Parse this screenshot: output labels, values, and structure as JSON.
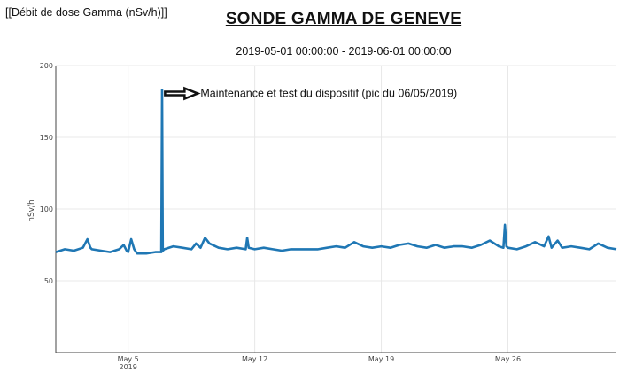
{
  "header": {
    "corner_label": "[[Débit de dose Gamma (nSv/h)]]",
    "title": "SONDE GAMMA DE GENEVE",
    "subtitle": "2019-05-01 00:00:00 - 2019-06-01 00:00:00"
  },
  "chart_data": {
    "type": "line",
    "title": "SONDE GAMMA DE GENEVE",
    "subtitle": "2019-05-01 00:00:00 - 2019-06-01 00:00:00",
    "xlabel": "",
    "ylabel": "nSv/h",
    "xlim": [
      "2019-05-01",
      "2019-06-01"
    ],
    "ylim": [
      0,
      200
    ],
    "yticks": [
      50,
      100,
      150,
      200
    ],
    "xticks": [
      {
        "date": "2019-05-05",
        "label": "May 5",
        "sublabel": "2019"
      },
      {
        "date": "2019-05-12",
        "label": "May 12",
        "sublabel": ""
      },
      {
        "date": "2019-05-19",
        "label": "May 19",
        "sublabel": ""
      },
      {
        "date": "2019-05-26",
        "label": "May 26",
        "sublabel": ""
      }
    ],
    "grid": true,
    "series": [
      {
        "name": "",
        "color": "#1f77b4",
        "points": [
          [
            "2019-05-01 00:00",
            70
          ],
          [
            "2019-05-01 12:00",
            72
          ],
          [
            "2019-05-02 00:00",
            71
          ],
          [
            "2019-05-02 12:00",
            73
          ],
          [
            "2019-05-02 18:00",
            79
          ],
          [
            "2019-05-02 22:00",
            73
          ],
          [
            "2019-05-03 00:00",
            72
          ],
          [
            "2019-05-03 12:00",
            71
          ],
          [
            "2019-05-04 00:00",
            70
          ],
          [
            "2019-05-04 12:00",
            72
          ],
          [
            "2019-05-04 18:00",
            75
          ],
          [
            "2019-05-04 22:00",
            71
          ],
          [
            "2019-05-05 00:00",
            70
          ],
          [
            "2019-05-05 04:00",
            79
          ],
          [
            "2019-05-05 08:00",
            72
          ],
          [
            "2019-05-05 12:00",
            69
          ],
          [
            "2019-05-06 00:00",
            69
          ],
          [
            "2019-05-06 12:00",
            70
          ],
          [
            "2019-05-06 20:00",
            70
          ],
          [
            "2019-05-06 21:00",
            183
          ],
          [
            "2019-05-06 22:00",
            71
          ],
          [
            "2019-05-07 00:00",
            72
          ],
          [
            "2019-05-07 12:00",
            74
          ],
          [
            "2019-05-08 00:00",
            73
          ],
          [
            "2019-05-08 12:00",
            72
          ],
          [
            "2019-05-08 18:00",
            76
          ],
          [
            "2019-05-09 00:00",
            73
          ],
          [
            "2019-05-09 06:00",
            80
          ],
          [
            "2019-05-09 12:00",
            76
          ],
          [
            "2019-05-10 00:00",
            73
          ],
          [
            "2019-05-10 12:00",
            72
          ],
          [
            "2019-05-11 00:00",
            73
          ],
          [
            "2019-05-11 12:00",
            72
          ],
          [
            "2019-05-11 14:00",
            80
          ],
          [
            "2019-05-11 16:00",
            73
          ],
          [
            "2019-05-12 00:00",
            72
          ],
          [
            "2019-05-12 12:00",
            73
          ],
          [
            "2019-05-13 00:00",
            72
          ],
          [
            "2019-05-13 12:00",
            71
          ],
          [
            "2019-05-14 00:00",
            72
          ],
          [
            "2019-05-14 12:00",
            72
          ],
          [
            "2019-05-15 00:00",
            72
          ],
          [
            "2019-05-15 12:00",
            72
          ],
          [
            "2019-05-16 00:00",
            73
          ],
          [
            "2019-05-16 12:00",
            74
          ],
          [
            "2019-05-17 00:00",
            73
          ],
          [
            "2019-05-17 12:00",
            77
          ],
          [
            "2019-05-18 00:00",
            74
          ],
          [
            "2019-05-18 12:00",
            73
          ],
          [
            "2019-05-19 00:00",
            74
          ],
          [
            "2019-05-19 12:00",
            73
          ],
          [
            "2019-05-20 00:00",
            75
          ],
          [
            "2019-05-20 12:00",
            76
          ],
          [
            "2019-05-21 00:00",
            74
          ],
          [
            "2019-05-21 12:00",
            73
          ],
          [
            "2019-05-22 00:00",
            75
          ],
          [
            "2019-05-22 12:00",
            73
          ],
          [
            "2019-05-23 00:00",
            74
          ],
          [
            "2019-05-23 12:00",
            74
          ],
          [
            "2019-05-24 00:00",
            73
          ],
          [
            "2019-05-24 12:00",
            75
          ],
          [
            "2019-05-25 00:00",
            78
          ],
          [
            "2019-05-25 12:00",
            74
          ],
          [
            "2019-05-25 18:00",
            73
          ],
          [
            "2019-05-25 20:00",
            89
          ],
          [
            "2019-05-25 22:00",
            74
          ],
          [
            "2019-05-26 00:00",
            73
          ],
          [
            "2019-05-26 12:00",
            72
          ],
          [
            "2019-05-27 00:00",
            74
          ],
          [
            "2019-05-27 12:00",
            77
          ],
          [
            "2019-05-28 00:00",
            74
          ],
          [
            "2019-05-28 06:00",
            81
          ],
          [
            "2019-05-28 10:00",
            73
          ],
          [
            "2019-05-28 18:00",
            78
          ],
          [
            "2019-05-29 00:00",
            73
          ],
          [
            "2019-05-29 12:00",
            74
          ],
          [
            "2019-05-30 00:00",
            73
          ],
          [
            "2019-05-30 12:00",
            72
          ],
          [
            "2019-05-31 00:00",
            76
          ],
          [
            "2019-05-31 12:00",
            73
          ],
          [
            "2019-06-01 00:00",
            72
          ]
        ]
      }
    ],
    "annotations": [
      {
        "text": "Maintenance et test du dispositif (pic du 06/05/2019)",
        "x": "2019-05-09 00:00",
        "y": 183
      }
    ]
  }
}
